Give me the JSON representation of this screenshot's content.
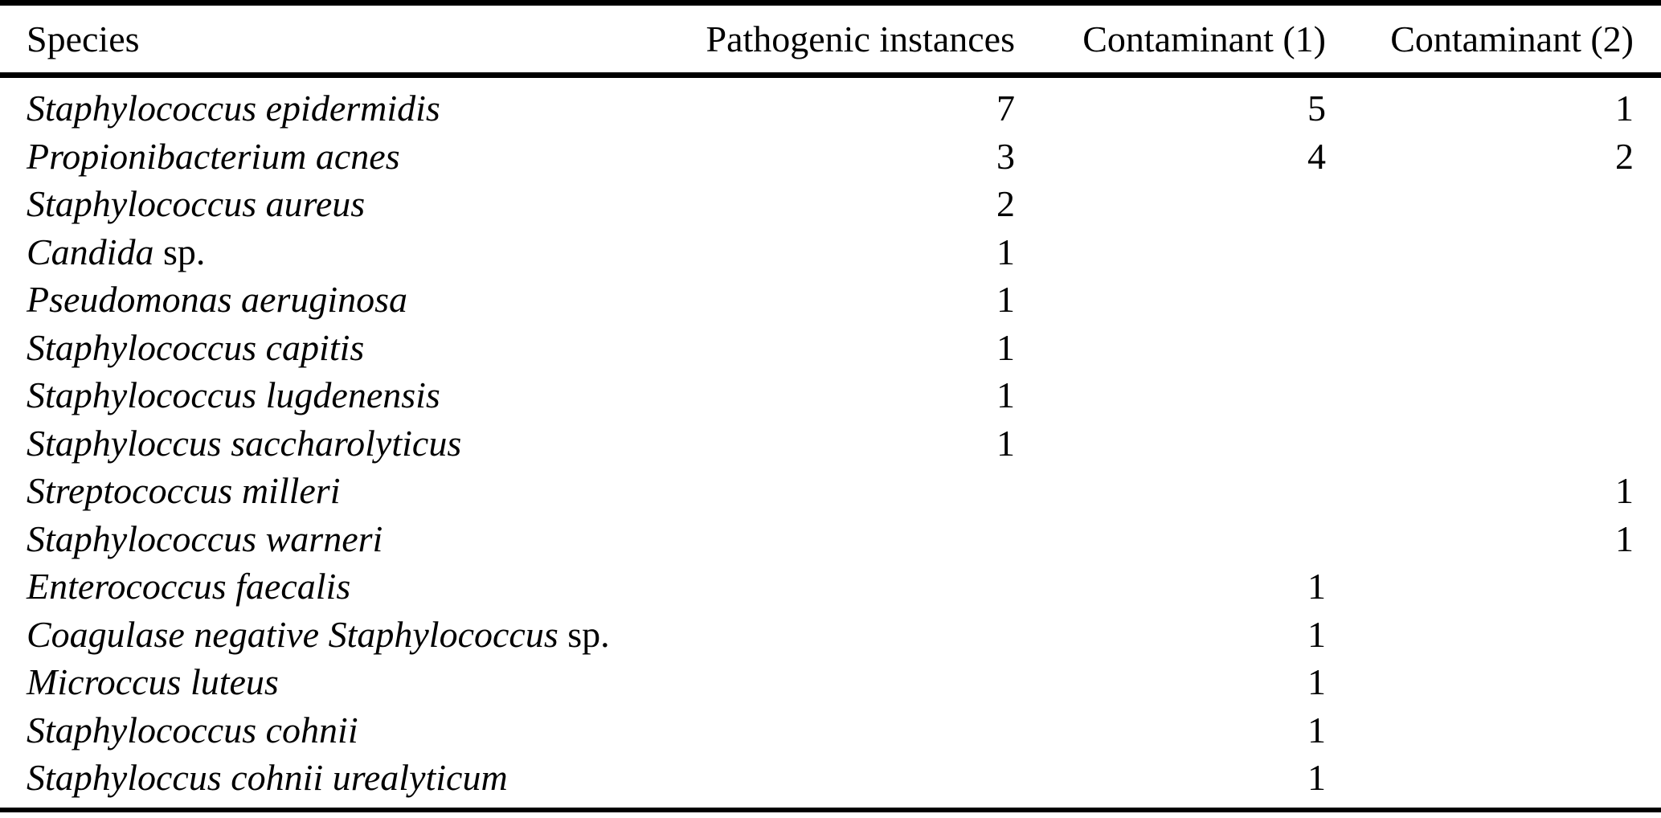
{
  "colors": {
    "background": "#ffffff",
    "text": "#000000",
    "rule": "#000000"
  },
  "table": {
    "columns": [
      "Species",
      "Pathogenic instances",
      "Contaminant (1)",
      "Contaminant (2)"
    ],
    "rows": [
      {
        "species_italic": "Staphylococcus epidermidis",
        "species_roman": "",
        "pathogenic": "7",
        "contaminant1": "5",
        "contaminant2": "1"
      },
      {
        "species_italic": "Propionibacterium acnes",
        "species_roman": "",
        "pathogenic": "3",
        "contaminant1": "4",
        "contaminant2": "2"
      },
      {
        "species_italic": "Staphylococcus aureus",
        "species_roman": "",
        "pathogenic": "2",
        "contaminant1": "",
        "contaminant2": ""
      },
      {
        "species_italic": "Candida",
        "species_roman": " sp.",
        "pathogenic": "1",
        "contaminant1": "",
        "contaminant2": ""
      },
      {
        "species_italic": "Pseudomonas aeruginosa",
        "species_roman": "",
        "pathogenic": "1",
        "contaminant1": "",
        "contaminant2": ""
      },
      {
        "species_italic": "Staphylococcus capitis",
        "species_roman": "",
        "pathogenic": "1",
        "contaminant1": "",
        "contaminant2": ""
      },
      {
        "species_italic": "Staphylococcus lugdenensis",
        "species_roman": "",
        "pathogenic": "1",
        "contaminant1": "",
        "contaminant2": ""
      },
      {
        "species_italic": "Staphyloccus saccharolyticus",
        "species_roman": "",
        "pathogenic": "1",
        "contaminant1": "",
        "contaminant2": ""
      },
      {
        "species_italic": "Streptococcus milleri",
        "species_roman": "",
        "pathogenic": "",
        "contaminant1": "",
        "contaminant2": "1"
      },
      {
        "species_italic": "Staphylococcus warneri",
        "species_roman": "",
        "pathogenic": "",
        "contaminant1": "",
        "contaminant2": "1"
      },
      {
        "species_italic": "Enterococcus faecalis",
        "species_roman": "",
        "pathogenic": "",
        "contaminant1": "1",
        "contaminant2": ""
      },
      {
        "species_italic": "Coagulase negative Staphylococcus",
        "species_roman": " sp.",
        "pathogenic": "",
        "contaminant1": "1",
        "contaminant2": ""
      },
      {
        "species_italic": "Microccus luteus",
        "species_roman": "",
        "pathogenic": "",
        "contaminant1": "1",
        "contaminant2": ""
      },
      {
        "species_italic": "Staphylococcus cohnii",
        "species_roman": "",
        "pathogenic": "",
        "contaminant1": "1",
        "contaminant2": ""
      },
      {
        "species_italic": "Staphyloccus cohnii urealyticum",
        "species_roman": "",
        "pathogenic": "",
        "contaminant1": "1",
        "contaminant2": ""
      }
    ]
  }
}
